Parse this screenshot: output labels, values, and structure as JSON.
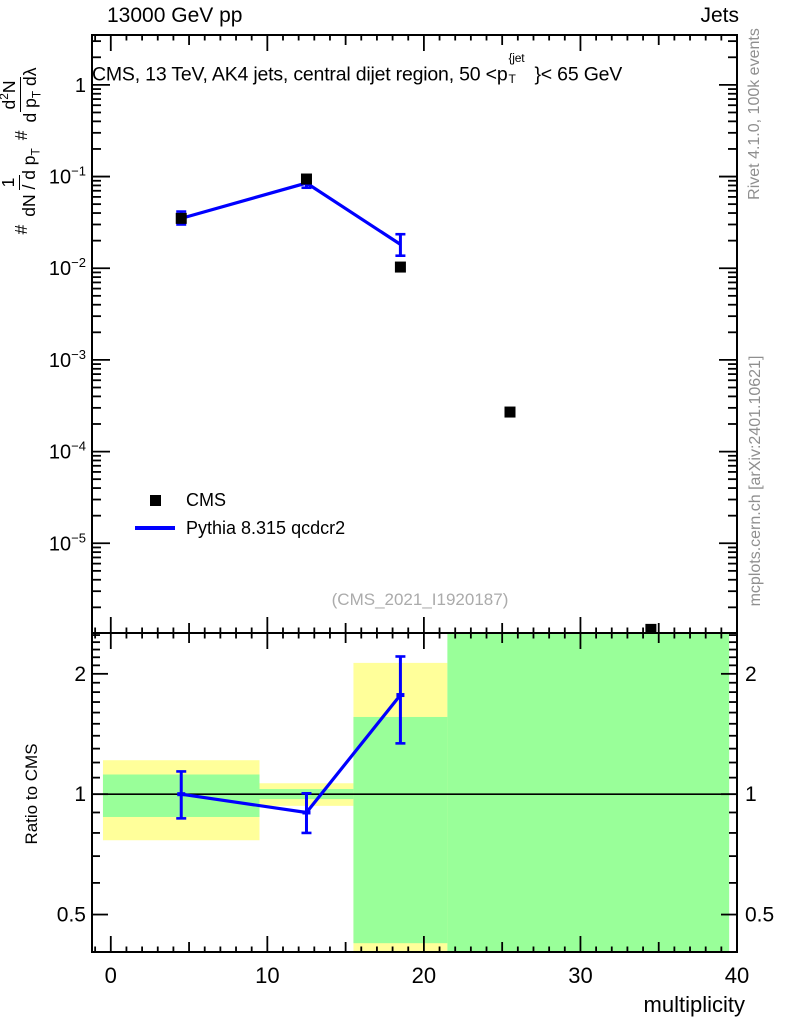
{
  "header": {
    "left": "13000 GeV pp",
    "right": "Jets"
  },
  "panel_title": {
    "prefix": "CMS, 13 TeV, AK4 jets, central dijet region, 50 <p",
    "sup": "{jet",
    "sub": "T",
    "suffix": "}< 65 GeV"
  },
  "main_ylabel": {
    "hash1": "#",
    "num1": "1",
    "den1_pre": "dN / d p",
    "den1_sub": "T",
    "hash2": "#",
    "num2_pre": "d",
    "num2_sup": "2",
    "num2_post": "N",
    "den2_pre": "d p",
    "den2_sub": "T",
    "den2_post": " dλ"
  },
  "side_notes": {
    "rivet": "Rivet 4.1.0,  100k events",
    "mcplots": "mcplots.cern.ch [arXiv:2401.10621]"
  },
  "watermark": "(CMS_2021_I1920187)",
  "legend": {
    "cms_label": "CMS",
    "mc_label": "Pythia 8.315 qcdcr2"
  },
  "ratio_ylabel": "Ratio to CMS",
  "xlabel": "multiplicity",
  "colors": {
    "mc_blue": "#0000ff",
    "band_yellow": "#ffff9a",
    "band_green": "#99ff99",
    "axis_black": "#000000",
    "note_gray": "#8f8f8f",
    "watermark_gray": "#ababab"
  },
  "chart_data": {
    "type": "scatter",
    "title": "CMS, 13 TeV, AK4 jets, central dijet region, 50 < pT^{jet} < 65 GeV",
    "xlabel": "multiplicity",
    "ylabel": "# 1/(dN/dpT)  # d2N/(dpT dlambda)",
    "x_range": [
      -1.2,
      40
    ],
    "x_label_ticks": [
      0,
      10,
      20,
      30,
      40
    ],
    "x_minor_step": 1,
    "x_medium_step": 5,
    "main_panel": {
      "y_scale": "log",
      "y_range": [
        1.05e-06,
        3.5
      ],
      "y_decade_exponents": [
        0,
        -1,
        -2,
        -3,
        -4,
        -5
      ],
      "grid": false
    },
    "ratio_panel": {
      "y_scale": "log",
      "y_range": [
        0.403,
        2.53
      ],
      "y_label_ticks": [
        0.5,
        1,
        2
      ],
      "reference_line": 1.0
    },
    "series": [
      {
        "name": "CMS",
        "type": "scatter",
        "marker": "filled-square",
        "color": "#000000",
        "points": [
          {
            "x": 4.5,
            "y": 0.035
          },
          {
            "x": 12.5,
            "y": 0.094
          },
          {
            "x": 18.5,
            "y": 0.0103
          },
          {
            "x": 25.5,
            "y": 0.00027
          },
          {
            "x": 34.5,
            "y": 1.15e-06
          }
        ]
      },
      {
        "name": "Pythia 8.315 qcdcr2",
        "type": "line",
        "color": "#0000ff",
        "points": [
          {
            "x": 4.5,
            "y": 0.035,
            "ylo": 0.03,
            "yhi": 0.0415
          },
          {
            "x": 12.5,
            "y": 0.085,
            "ylo": 0.0755,
            "yhi": 0.094
          },
          {
            "x": 18.5,
            "y": 0.0182,
            "ylo": 0.0137,
            "yhi": 0.0235
          }
        ]
      }
    ],
    "ratio": {
      "bands": [
        {
          "x0": -0.5,
          "x1": 9.5,
          "yellow": [
            0.767,
            1.216
          ],
          "green": [
            0.877,
            1.12
          ]
        },
        {
          "x0": 9.5,
          "x1": 15.5,
          "yellow": [
            0.935,
            1.065
          ],
          "green": [
            0.972,
            1.03
          ]
        },
        {
          "x0": 15.5,
          "x1": 21.5,
          "yellow": [
            0.38,
            2.13
          ],
          "green": [
            0.424,
            1.56
          ]
        },
        {
          "x0": 21.5,
          "x1": 39.5,
          "yellow": null,
          "green": [
            0.38,
            2.6
          ]
        }
      ],
      "points": [
        {
          "x": 4.5,
          "y": 1.0,
          "ylo": 0.87,
          "yhi": 1.14
        },
        {
          "x": 12.5,
          "y": 0.9,
          "ylo": 0.8,
          "yhi": 1.005
        },
        {
          "x": 18.5,
          "y": 1.77,
          "ylo": 1.34,
          "yhi": 2.21
        }
      ]
    }
  }
}
